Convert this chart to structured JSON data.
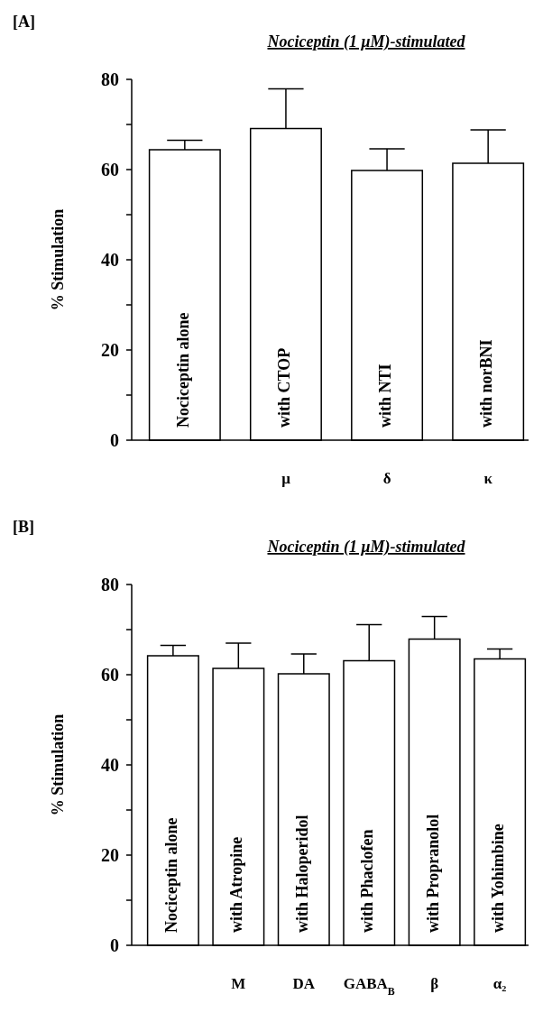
{
  "chart_data": [
    {
      "type": "bar",
      "title": "Nociceptin (1 μM)-stimulated",
      "ylabel": "% Stimulation",
      "categories": [
        "Nociceptin alone",
        "with CTOP",
        "with NTI",
        "with norBNI"
      ],
      "values": [
        64.4,
        69.1,
        59.8,
        61.4
      ],
      "errors": [
        [
          64.4,
          66.5
        ],
        [
          69.1,
          77.9
        ],
        [
          59.8,
          64.6
        ],
        [
          61.4,
          68.8
        ]
      ],
      "color": "#ffffff",
      "ylim": [
        0,
        80
      ],
      "yticks": [
        0,
        {
          "value": 10,
          "label": null
        },
        20,
        {
          "value": 30,
          "label": null
        },
        40,
        {
          "value": 50,
          "label": null
        },
        60,
        {
          "value": 70,
          "label": null
        },
        80
      ],
      "annotations": [
        "[A]",
        "μ",
        "δ",
        "κ"
      ]
    },
    {
      "type": "bar",
      "title": "Nociceptin (1 μM)-stimulated",
      "ylabel": "% Stimulation",
      "categories": [
        "Nociceptin alone",
        "with Atropine",
        "with Haloperidol",
        "with Phaclofen",
        "with Propranolol",
        "with Yohimbine"
      ],
      "values": [
        64.2,
        61.4,
        60.2,
        63.1,
        67.9,
        63.5
      ],
      "errors": [
        [
          64.2,
          66.5
        ],
        [
          61.4,
          67.0
        ],
        [
          60.2,
          64.6
        ],
        [
          63.1,
          71.1
        ],
        [
          67.9,
          72.9
        ],
        [
          63.5,
          65.7
        ]
      ],
      "color": "#ffffff",
      "ylim": [
        0,
        80
      ],
      "yticks": [
        0,
        {
          "value": 10,
          "label": null
        },
        20,
        {
          "value": 30,
          "label": null
        },
        40,
        {
          "value": 50,
          "label": null
        },
        60,
        {
          "value": 70,
          "label": null
        },
        80
      ],
      "annotations": [
        "[B]",
        "M",
        "DA",
        "GABA$_{B}$",
        "β",
        "α₂"
      ]
    }
  ]
}
